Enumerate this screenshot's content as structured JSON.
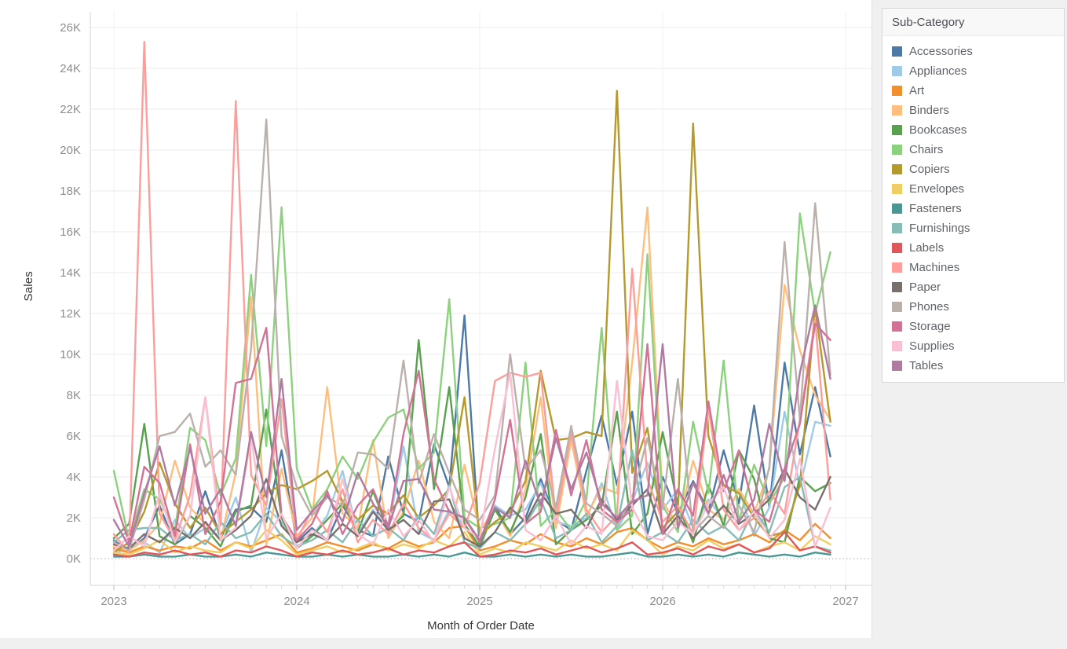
{
  "axes": {
    "y_title": "Sales",
    "x_title": "Month of Order Date"
  },
  "legend": {
    "title": "Sub-Category"
  },
  "chart_data": {
    "type": "line",
    "title": "",
    "xlabel": "Month of Order Date",
    "ylabel": "Sales",
    "x_start": "2023-01",
    "x_end": "2026-12",
    "months": 48,
    "x_tick_labels": [
      "2023",
      "2024",
      "2025",
      "2026",
      "2027"
    ],
    "y_tick_labels": [
      "0K",
      "2K",
      "4K",
      "6K",
      "8K",
      "10K",
      "12K",
      "14K",
      "16K",
      "18K",
      "20K",
      "22K",
      "24K",
      "26K"
    ],
    "y_tick_step_k": 2,
    "ylim_k": [
      0,
      26
    ],
    "grid": "horizontal",
    "legend_position": "right",
    "values_unit": "thousands",
    "series": [
      {
        "name": "Accessories",
        "color": "#4e79a7",
        "values": [
          0.9,
          0.4,
          1.0,
          2.6,
          0.7,
          1.2,
          3.3,
          1.0,
          2.4,
          2.5,
          1.8,
          5.3,
          0.8,
          1.5,
          0.9,
          2.6,
          1.4,
          1.1,
          5.0,
          2.2,
          1.8,
          5.6,
          3.5,
          11.9,
          0.5,
          2.6,
          1.2,
          2.0,
          3.9,
          1.9,
          1.4,
          4.3,
          7.0,
          3.6,
          7.2,
          1.2,
          4.0,
          2.2,
          3.8,
          2.3,
          5.3,
          2.7,
          7.5,
          2.5,
          9.6,
          5.1,
          8.4,
          5.0
        ]
      },
      {
        "name": "Appliances",
        "color": "#a0cbe8",
        "values": [
          0.2,
          0.6,
          0.8,
          0.3,
          1.9,
          1.0,
          1.5,
          1.1,
          3.0,
          0.3,
          2.5,
          1.8,
          0.6,
          1.1,
          2.1,
          4.3,
          1.2,
          2.4,
          1.4,
          5.5,
          1.3,
          0.9,
          2.4,
          1.6,
          0.5,
          2.6,
          2.1,
          2.4,
          3.7,
          1.8,
          1.6,
          2.0,
          3.7,
          1.4,
          2.8,
          4.7,
          2.4,
          3.4,
          1.5,
          2.9,
          1.9,
          3.4,
          1.1,
          2.5,
          7.2,
          3.5,
          6.7,
          6.5
        ]
      },
      {
        "name": "Art",
        "color": "#f28e2b",
        "values": [
          0.5,
          0.3,
          0.6,
          0.4,
          0.6,
          0.5,
          0.9,
          0.4,
          0.8,
          0.6,
          0.9,
          1.2,
          0.3,
          0.5,
          0.8,
          0.6,
          0.4,
          0.7,
          0.5,
          0.9,
          0.6,
          0.8,
          1.5,
          1.6,
          0.4,
          0.6,
          0.9,
          0.7,
          1.2,
          0.8,
          0.6,
          1.0,
          0.7,
          1.3,
          1.5,
          0.9,
          0.5,
          0.8,
          0.6,
          1.0,
          0.7,
          0.9,
          1.2,
          0.8,
          1.4,
          0.9,
          1.7,
          1.0
        ]
      },
      {
        "name": "Binders",
        "color": "#ffbe7d",
        "values": [
          0.6,
          0.4,
          0.9,
          1.7,
          4.8,
          2.5,
          1.7,
          0.9,
          4.2,
          12.8,
          0.7,
          4.4,
          1.1,
          2.0,
          8.4,
          2.2,
          1.5,
          5.8,
          1.0,
          2.3,
          4.8,
          1.8,
          1.0,
          4.6,
          1.4,
          2.4,
          1.1,
          3.4,
          7.9,
          1.5,
          5.8,
          2.1,
          3.5,
          3.2,
          9.6,
          17.2,
          2.8,
          1.6,
          4.8,
          2.4,
          1.9,
          3.4,
          2.2,
          4.4,
          13.4,
          10.2,
          8.0,
          6.8
        ]
      },
      {
        "name": "Bookcases",
        "color": "#59a14f",
        "values": [
          1.0,
          1.7,
          6.6,
          1.1,
          0.7,
          2.1,
          1.5,
          0.6,
          2.3,
          2.6,
          7.3,
          2.0,
          0.5,
          1.1,
          1.9,
          2.7,
          1.3,
          3.3,
          1.4,
          2.1,
          10.7,
          3.4,
          8.4,
          1.7,
          0.6,
          2.4,
          1.3,
          3.0,
          6.1,
          0.7,
          1.4,
          1.9,
          2.6,
          7.2,
          1.2,
          2.2,
          6.2,
          2.6,
          0.8,
          3.6,
          1.6,
          5.3,
          3.9,
          1.0,
          0.8,
          4.0,
          3.3,
          3.7
        ]
      },
      {
        "name": "Chairs",
        "color": "#8cd17d",
        "values": [
          4.3,
          0.9,
          3.4,
          2.9,
          1.4,
          6.4,
          5.8,
          3.1,
          4.9,
          13.9,
          5.5,
          17.2,
          4.4,
          2.4,
          3.4,
          5.0,
          3.9,
          5.7,
          6.9,
          7.3,
          4.4,
          5.2,
          12.7,
          2.0,
          1.5,
          1.7,
          2.0,
          9.6,
          1.6,
          2.4,
          1.4,
          2.9,
          11.3,
          1.4,
          2.1,
          14.9,
          2.6,
          1.3,
          6.7,
          3.2,
          9.7,
          1.8,
          4.6,
          2.7,
          4.0,
          16.9,
          12.0,
          15.0
        ]
      },
      {
        "name": "Copiers",
        "color": "#b6992d",
        "values": [
          0.3,
          0.8,
          2.3,
          4.7,
          2.7,
          1.5,
          2.5,
          1.2,
          1.8,
          2.4,
          3.2,
          3.6,
          3.4,
          3.8,
          4.3,
          2.8,
          1.9,
          2.6,
          2.2,
          3.1,
          2.0,
          2.6,
          3.4,
          7.9,
          1.1,
          1.8,
          2.3,
          3.8,
          9.2,
          5.8,
          5.9,
          6.2,
          6.0,
          22.9,
          4.2,
          6.4,
          1.5,
          2.3,
          21.3,
          6.0,
          3.6,
          3.2,
          2.0,
          1.1,
          1.3,
          3.6,
          12.3,
          6.7
        ]
      },
      {
        "name": "Envelopes",
        "color": "#f1ce63",
        "values": [
          0.3,
          0.2,
          0.5,
          0.9,
          0.3,
          0.6,
          0.4,
          0.3,
          0.8,
          0.5,
          1.4,
          0.9,
          0.2,
          0.4,
          0.6,
          0.3,
          0.5,
          0.8,
          0.4,
          0.7,
          0.5,
          0.9,
          0.6,
          1.3,
          0.2,
          0.5,
          0.3,
          0.8,
          0.6,
          0.4,
          0.9,
          0.5,
          0.7,
          0.4,
          1.4,
          0.9,
          0.2,
          0.6,
          0.4,
          0.9,
          0.5,
          0.7,
          0.3,
          0.6,
          0.8,
          0.4,
          1.1,
          0.7
        ]
      },
      {
        "name": "Fasteners",
        "color": "#499894",
        "values": [
          0.1,
          0.1,
          0.2,
          0.1,
          0.1,
          0.2,
          0.1,
          0.1,
          0.2,
          0.1,
          0.3,
          0.2,
          0.1,
          0.1,
          0.2,
          0.1,
          0.2,
          0.1,
          0.1,
          0.2,
          0.1,
          0.2,
          0.1,
          0.3,
          0.1,
          0.1,
          0.2,
          0.1,
          0.2,
          0.1,
          0.2,
          0.1,
          0.1,
          0.2,
          0.3,
          0.1,
          0.1,
          0.2,
          0.1,
          0.2,
          0.1,
          0.3,
          0.2,
          0.1,
          0.2,
          0.1,
          0.3,
          0.2
        ]
      },
      {
        "name": "Furnishings",
        "color": "#86bcb6",
        "values": [
          0.8,
          1.4,
          1.5,
          1.5,
          0.9,
          1.2,
          0.7,
          1.8,
          1.0,
          1.3,
          2.2,
          1.1,
          0.6,
          0.9,
          1.4,
          0.8,
          1.9,
          1.1,
          1.5,
          0.9,
          2.1,
          1.2,
          3.6,
          0.8,
          0.5,
          1.3,
          0.9,
          1.7,
          2.9,
          1.0,
          1.4,
          2.2,
          0.8,
          1.6,
          5.3,
          0.9,
          1.3,
          0.8,
          1.9,
          1.2,
          1.6,
          0.9,
          2.4,
          1.3,
          3.5,
          4.0,
          0.6,
          0.4
        ]
      },
      {
        "name": "Labels",
        "color": "#e15759",
        "values": [
          0.2,
          0.1,
          0.3,
          0.2,
          0.4,
          0.2,
          0.3,
          0.1,
          0.4,
          0.3,
          0.6,
          0.4,
          0.1,
          0.3,
          0.2,
          0.4,
          0.2,
          0.3,
          0.5,
          0.2,
          0.4,
          0.3,
          0.6,
          0.8,
          0.1,
          0.2,
          0.4,
          0.3,
          0.5,
          0.2,
          0.4,
          0.6,
          0.3,
          0.5,
          0.8,
          0.2,
          0.3,
          0.5,
          0.2,
          0.6,
          0.4,
          0.7,
          0.3,
          0.5,
          1.3,
          0.4,
          0.6,
          0.3
        ]
      },
      {
        "name": "Machines",
        "color": "#ff9d9a",
        "values": [
          1.2,
          0.3,
          25.3,
          2.2,
          0.9,
          3.1,
          7.9,
          1.6,
          22.4,
          4.1,
          2.6,
          7.8,
          0.9,
          2.4,
          1.3,
          3.4,
          0.8,
          1.9,
          1.2,
          2.7,
          1.5,
          0.9,
          2.2,
          1.5,
          3.7,
          8.7,
          9.1,
          8.9,
          9.1,
          2.0,
          6.2,
          2.4,
          1.3,
          2.1,
          14.2,
          3.9,
          1.8,
          2.6,
          1.2,
          7.4,
          2.4,
          1.4,
          2.0,
          3.3,
          2.2,
          6.8,
          11.7,
          2.9
        ]
      },
      {
        "name": "Paper",
        "color": "#79706e",
        "values": [
          0.7,
          0.5,
          1.2,
          0.8,
          1.5,
          1.0,
          1.8,
          0.9,
          1.4,
          2.1,
          3.9,
          1.6,
          0.8,
          1.2,
          0.9,
          1.7,
          1.1,
          2.3,
          1.4,
          1.9,
          1.2,
          2.8,
          2.9,
          1.0,
          0.6,
          1.3,
          2.5,
          1.8,
          3.2,
          2.2,
          2.4,
          1.5,
          2.9,
          1.9,
          2.6,
          3.4,
          1.2,
          2.1,
          1.0,
          1.8,
          2.6,
          1.7,
          2.2,
          2.9,
          4.4,
          3.0,
          2.4,
          4.0
        ]
      },
      {
        "name": "Phones",
        "color": "#bab0ac",
        "values": [
          0.8,
          0.4,
          2.9,
          6.0,
          6.2,
          7.1,
          4.5,
          5.3,
          4.1,
          10.3,
          21.5,
          6.0,
          3.5,
          2.1,
          3.0,
          2.6,
          5.2,
          5.1,
          4.4,
          9.7,
          3.7,
          6.1,
          4.2,
          2.4,
          1.9,
          3.1,
          10.0,
          4.4,
          5.3,
          2.5,
          6.5,
          2.7,
          2.2,
          1.6,
          3.0,
          5.9,
          2.5,
          8.8,
          1.3,
          2.1,
          1.5,
          2.6,
          1.3,
          4.5,
          15.5,
          6.8,
          17.4,
          9.0
        ]
      },
      {
        "name": "Storage",
        "color": "#d37295",
        "values": [
          3.0,
          0.8,
          4.5,
          3.7,
          1.1,
          5.6,
          1.2,
          2.8,
          8.6,
          8.8,
          11.3,
          2.1,
          0.9,
          1.7,
          3.3,
          1.2,
          2.6,
          3.4,
          1.6,
          6.1,
          9.2,
          3.9,
          2.3,
          2.0,
          0.8,
          2.9,
          6.8,
          1.7,
          2.3,
          6.3,
          3.1,
          5.8,
          2.4,
          1.8,
          2.4,
          10.5,
          1.2,
          3.4,
          2.1,
          7.7,
          3.3,
          5.3,
          2.4,
          1.8,
          4.4,
          6.6,
          11.5,
          10.7
        ]
      },
      {
        "name": "Supplies",
        "color": "#fabfd2",
        "values": [
          0.4,
          1.1,
          0.6,
          3.2,
          0.8,
          2.1,
          7.9,
          0.9,
          1.5,
          5.9,
          1.0,
          2.2,
          0.5,
          1.4,
          0.9,
          3.9,
          1.2,
          0.7,
          2.4,
          1.1,
          1.9,
          0.8,
          3.5,
          1.5,
          1.0,
          5.4,
          9.1,
          1.4,
          0.9,
          2.1,
          0.7,
          1.6,
          1.2,
          8.7,
          2.5,
          1.1,
          0.9,
          1.8,
          1.2,
          2.7,
          3.5,
          1.4,
          2.3,
          1.0,
          1.9,
          4.9,
          0.6,
          2.5
        ]
      },
      {
        "name": "Tables",
        "color": "#b07aa1",
        "values": [
          1.9,
          0.6,
          3.2,
          5.5,
          2.6,
          5.4,
          2.2,
          3.4,
          1.6,
          6.2,
          3.0,
          8.8,
          1.4,
          2.3,
          3.1,
          1.8,
          4.2,
          2.7,
          1.5,
          3.8,
          3.9,
          2.4,
          2.3,
          2.0,
          0.9,
          2.5,
          2.0,
          4.8,
          2.6,
          5.9,
          3.4,
          5.2,
          2.7,
          2.0,
          2.8,
          3.1,
          10.5,
          1.5,
          3.7,
          2.2,
          4.1,
          1.8,
          2.9,
          6.6,
          3.8,
          9.1,
          12.4,
          8.8
        ]
      }
    ]
  },
  "style": {
    "grid_color": "#ebebeb",
    "zero_line_color": "#c7c7c7",
    "axis_line_color": "#d5d5d5",
    "tick_label_color": "#8d8d8d",
    "axis_title_color": "#363636",
    "background": "#ffffff",
    "outer_background": "#f0f0f0"
  }
}
